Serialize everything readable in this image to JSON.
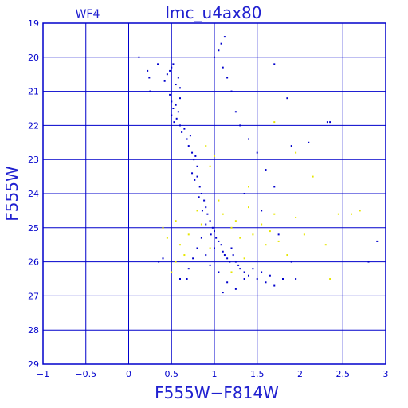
{
  "chart_data": {
    "type": "scatter",
    "title": "lmc_u4ax80",
    "chip_label": "WF4",
    "xlabel": "F555W−F814W",
    "ylabel": "F555W",
    "xlim": [
      -1,
      3
    ],
    "ylim": [
      29,
      19
    ],
    "y_inverted": true,
    "x_ticks": [
      -1,
      -0.5,
      0,
      0.5,
      1,
      1.5,
      2,
      2.5,
      3
    ],
    "x_tick_labels": [
      "−1",
      "−0.5",
      "0",
      "0.5",
      "1",
      "1.5",
      "2",
      "2.5",
      "3"
    ],
    "y_ticks": [
      19,
      20,
      21,
      22,
      23,
      24,
      25,
      26,
      27,
      28,
      29
    ],
    "y_tick_labels": [
      "19",
      "20",
      "21",
      "22",
      "23",
      "24",
      "25",
      "26",
      "27",
      "28",
      "29"
    ],
    "grid": true,
    "colors": {
      "axes": "#0000cc",
      "labels": "#2020d0",
      "main_series": "#0000cc",
      "secondary_series": "#e6e600"
    },
    "series": [
      {
        "color": "#0000cc",
        "points": [
          [
            0.12,
            20.0
          ],
          [
            0.22,
            20.4
          ],
          [
            0.24,
            20.6
          ],
          [
            0.25,
            21.0
          ],
          [
            0.34,
            20.2
          ],
          [
            0.42,
            20.7
          ],
          [
            0.45,
            20.5
          ],
          [
            0.48,
            20.4
          ],
          [
            0.5,
            20.3
          ],
          [
            0.52,
            20.2
          ],
          [
            0.55,
            20.8
          ],
          [
            0.58,
            20.6
          ],
          [
            0.6,
            20.9
          ],
          [
            0.48,
            21.1
          ],
          [
            0.5,
            21.3
          ],
          [
            0.52,
            21.5
          ],
          [
            0.55,
            21.4
          ],
          [
            0.58,
            21.6
          ],
          [
            0.6,
            21.2
          ],
          [
            0.5,
            21.7
          ],
          [
            0.53,
            21.9
          ],
          [
            0.56,
            21.8
          ],
          [
            0.6,
            22.0
          ],
          [
            0.62,
            22.2
          ],
          [
            0.65,
            22.1
          ],
          [
            0.68,
            22.4
          ],
          [
            0.7,
            22.6
          ],
          [
            0.72,
            22.3
          ],
          [
            0.74,
            22.8
          ],
          [
            0.76,
            23.0
          ],
          [
            0.78,
            22.9
          ],
          [
            0.8,
            23.2
          ],
          [
            0.74,
            23.4
          ],
          [
            0.77,
            23.6
          ],
          [
            0.8,
            23.5
          ],
          [
            0.83,
            23.8
          ],
          [
            0.85,
            24.0
          ],
          [
            0.82,
            24.1
          ],
          [
            0.88,
            24.2
          ],
          [
            0.9,
            24.4
          ],
          [
            0.86,
            24.5
          ],
          [
            0.92,
            24.6
          ],
          [
            0.95,
            24.8
          ],
          [
            0.9,
            24.9
          ],
          [
            0.98,
            25.0
          ],
          [
            1.0,
            25.1
          ],
          [
            0.96,
            25.2
          ],
          [
            1.02,
            25.3
          ],
          [
            1.05,
            25.4
          ],
          [
            1.08,
            25.5
          ],
          [
            1.0,
            25.6
          ],
          [
            1.1,
            25.7
          ],
          [
            1.12,
            25.8
          ],
          [
            1.15,
            25.9
          ],
          [
            1.18,
            26.0
          ],
          [
            1.2,
            25.6
          ],
          [
            1.22,
            25.8
          ],
          [
            1.25,
            26.0
          ],
          [
            1.28,
            26.1
          ],
          [
            1.3,
            26.2
          ],
          [
            1.35,
            26.3
          ],
          [
            1.4,
            26.4
          ],
          [
            1.45,
            26.2
          ],
          [
            1.5,
            26.5
          ],
          [
            1.55,
            26.3
          ],
          [
            1.6,
            26.6
          ],
          [
            1.65,
            26.4
          ],
          [
            1.7,
            26.7
          ],
          [
            1.8,
            26.5
          ],
          [
            0.85,
            25.3
          ],
          [
            0.8,
            25.6
          ],
          [
            0.75,
            25.9
          ],
          [
            0.7,
            26.2
          ],
          [
            0.68,
            26.5
          ],
          [
            0.9,
            25.8
          ],
          [
            0.95,
            26.1
          ],
          [
            1.05,
            26.3
          ],
          [
            1.15,
            26.6
          ],
          [
            1.25,
            26.8
          ],
          [
            1.35,
            26.5
          ],
          [
            1.0,
            20.0
          ],
          [
            1.05,
            19.8
          ],
          [
            1.08,
            19.6
          ],
          [
            1.12,
            19.4
          ],
          [
            1.1,
            20.3
          ],
          [
            1.15,
            20.6
          ],
          [
            1.2,
            21.0
          ],
          [
            1.25,
            21.6
          ],
          [
            1.3,
            22.0
          ],
          [
            1.4,
            22.4
          ],
          [
            1.5,
            22.8
          ],
          [
            1.6,
            23.3
          ],
          [
            1.7,
            23.8
          ],
          [
            1.85,
            21.2
          ],
          [
            1.9,
            22.6
          ],
          [
            2.1,
            22.5
          ],
          [
            2.32,
            21.9
          ],
          [
            2.35,
            21.9
          ],
          [
            1.7,
            20.2
          ],
          [
            1.35,
            24.0
          ],
          [
            1.55,
            24.5
          ],
          [
            1.75,
            25.2
          ],
          [
            1.9,
            26.0
          ],
          [
            2.8,
            26.0
          ],
          [
            2.9,
            25.4
          ],
          [
            0.4,
            25.9
          ],
          [
            0.35,
            26.0
          ],
          [
            0.6,
            26.5
          ],
          [
            1.95,
            26.5
          ],
          [
            1.1,
            26.9
          ]
        ]
      },
      {
        "color": "#e6e600",
        "points": [
          [
            0.4,
            25.0
          ],
          [
            0.45,
            25.3
          ],
          [
            0.55,
            24.8
          ],
          [
            0.6,
            25.5
          ],
          [
            0.65,
            25.8
          ],
          [
            0.7,
            25.2
          ],
          [
            0.8,
            24.5
          ],
          [
            0.85,
            24.9
          ],
          [
            0.95,
            25.6
          ],
          [
            1.05,
            24.2
          ],
          [
            1.1,
            24.6
          ],
          [
            1.2,
            25.0
          ],
          [
            1.25,
            24.8
          ],
          [
            1.3,
            25.3
          ],
          [
            1.35,
            25.9
          ],
          [
            1.4,
            24.4
          ],
          [
            1.45,
            25.2
          ],
          [
            1.55,
            24.9
          ],
          [
            1.6,
            25.5
          ],
          [
            1.65,
            25.1
          ],
          [
            1.7,
            24.6
          ],
          [
            1.75,
            25.4
          ],
          [
            1.85,
            25.8
          ],
          [
            1.95,
            24.7
          ],
          [
            2.05,
            25.2
          ],
          [
            2.15,
            23.5
          ],
          [
            2.3,
            25.5
          ],
          [
            2.35,
            26.5
          ],
          [
            2.45,
            24.6
          ],
          [
            2.6,
            24.6
          ],
          [
            2.7,
            24.5
          ],
          [
            1.95,
            22.8
          ],
          [
            1.7,
            21.9
          ],
          [
            0.9,
            22.6
          ],
          [
            0.95,
            23.2
          ],
          [
            1.0,
            22.9
          ],
          [
            1.4,
            23.8
          ],
          [
            0.5,
            26.3
          ],
          [
            0.55,
            26.0
          ],
          [
            1.2,
            26.3
          ]
        ]
      }
    ]
  }
}
